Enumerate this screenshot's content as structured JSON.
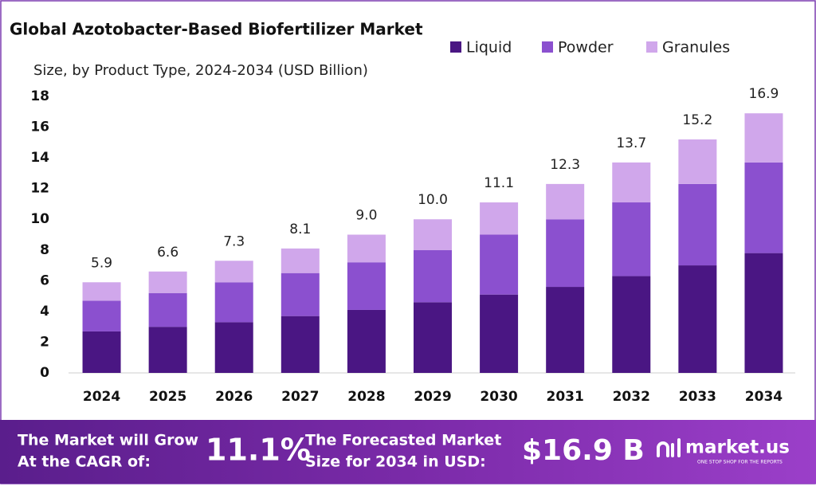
{
  "chart_data": {
    "type": "stacked-bar",
    "title": "Global Azotobacter-Based Biofertilizer Market",
    "subtitle": "Size, by  Product Type, 2024-2034 (USD Billion)",
    "categories": [
      "2024",
      "2025",
      "2026",
      "2027",
      "2028",
      "2029",
      "2030",
      "2031",
      "2032",
      "2033",
      "2034"
    ],
    "series": [
      {
        "name": "Liquid",
        "color": "#4a1683",
        "values": [
          2.7,
          3.0,
          3.3,
          3.7,
          4.1,
          4.6,
          5.1,
          5.6,
          6.3,
          7.0,
          7.8
        ]
      },
      {
        "name": "Powder",
        "color": "#8b50cf",
        "values": [
          2.0,
          2.2,
          2.6,
          2.8,
          3.1,
          3.4,
          3.9,
          4.4,
          4.8,
          5.3,
          5.9
        ]
      },
      {
        "name": "Granules",
        "color": "#d0a7eb",
        "values": [
          1.2,
          1.4,
          1.4,
          1.6,
          1.8,
          2.0,
          2.1,
          2.3,
          2.6,
          2.9,
          3.2
        ]
      }
    ],
    "total_labels": [
      "5.9",
      "6.6",
      "7.3",
      "8.1",
      "9.0",
      "10.0",
      "11.1",
      "12.3",
      "13.7",
      "15.2",
      "16.9"
    ],
    "ylim": [
      0,
      18
    ],
    "yticks": [
      0,
      2,
      4,
      6,
      8,
      10,
      12,
      14,
      16,
      18
    ],
    "grid": false
  },
  "footer": {
    "cagr_text_1": "The Market will Grow",
    "cagr_text_2": "At the CAGR of:",
    "cagr_value": "11.1%",
    "forecast_text_1": "The Forecasted Market",
    "forecast_text_2": "Size for 2034 in USD:",
    "forecast_value": "$16.9 B",
    "brand": "market.us",
    "tagline": "ONE STOP SHOP FOR THE REPORTS"
  }
}
